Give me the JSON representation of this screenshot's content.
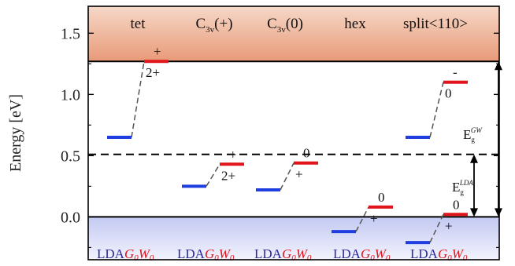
{
  "chart_data": {
    "type": "scatter",
    "ylabel": "Energy [eV]",
    "ylim": [
      -0.35,
      1.72
    ],
    "yticks": [
      0.0,
      0.5,
      1.0,
      1.5
    ],
    "ytick_labels": [
      "0.0",
      "0.5",
      "1.0",
      "1.5"
    ],
    "band_edges": {
      "vbm": 0.0,
      "cbm_gw": 1.27,
      "cbm_lda": 0.51
    },
    "colors": {
      "lda": "#1f3ee0",
      "gw": "#e0141a",
      "text_lda": "#2b2b9a",
      "text_gw": "#e0141a",
      "conduction_band": "#f4cdb8",
      "valence_band": "#cfd3f3"
    },
    "defects": [
      {
        "label": "tet",
        "sub": "",
        "lda": 0.65,
        "gw": 1.27,
        "charge_above": "+",
        "charge_below": "2+"
      },
      {
        "label": "C",
        "sub": "3v",
        "suffix": "(+)",
        "lda": 0.25,
        "gw": 0.43,
        "charge_above": "+",
        "charge_below": "2+"
      },
      {
        "label": "C",
        "sub": "3v",
        "suffix": "(0)",
        "lda": 0.22,
        "gw": 0.44,
        "charge_above": "0",
        "charge_below": "+"
      },
      {
        "label": "hex",
        "sub": "",
        "lda": -0.12,
        "gw": 0.08,
        "charge_above": "0",
        "charge_below": "+"
      },
      {
        "label": "split<110>",
        "sub": "",
        "lda": -0.21,
        "gw": 0.02,
        "charge_above": "0",
        "charge_below": "+"
      },
      {
        "label": "",
        "sub": "",
        "lda": 0.65,
        "gw": 1.1,
        "charge_above": "-",
        "charge_below": "0"
      }
    ],
    "method_labels": {
      "lda": "LDA",
      "gw_G": "G",
      "gw_G_sub": "0",
      "gw_W": "W",
      "gw_W_sub": "0"
    },
    "gap_gw": {
      "label": "E",
      "sub": "g",
      "sup": "GW"
    },
    "gap_lda": {
      "label": "E",
      "sub": "g",
      "sup": "LDA"
    }
  }
}
